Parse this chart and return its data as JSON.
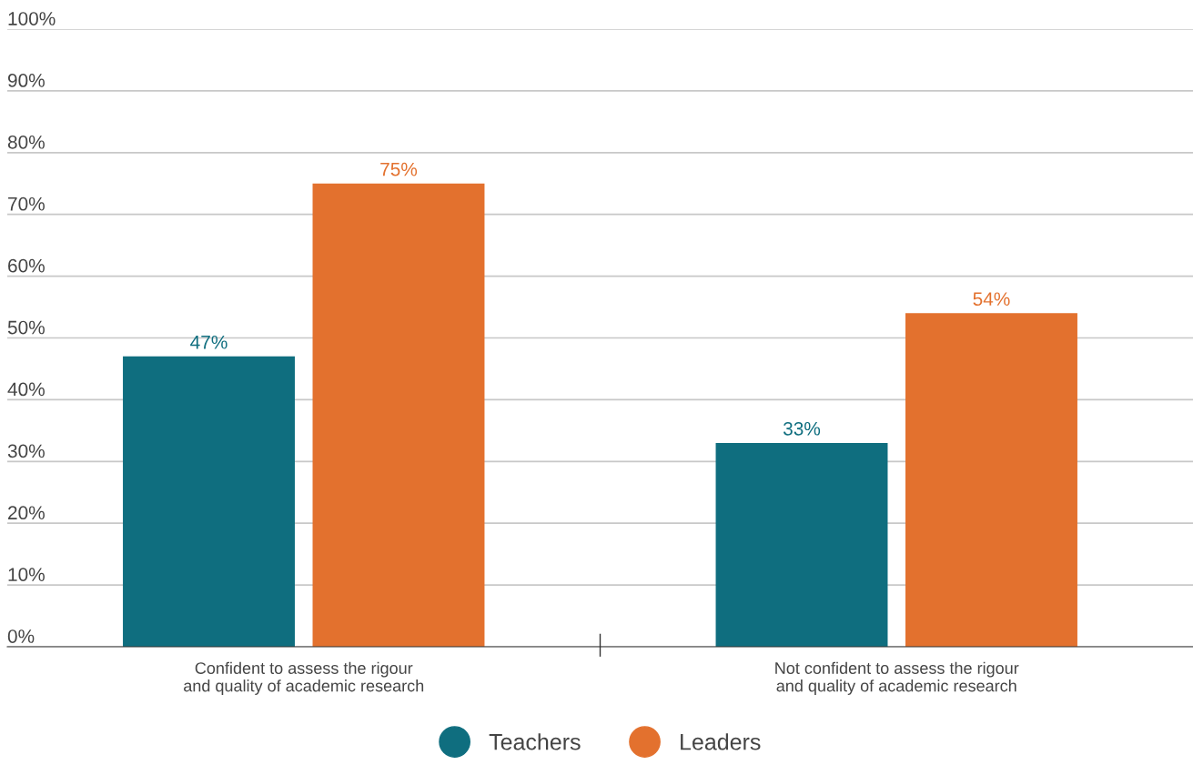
{
  "chart_data": {
    "type": "bar",
    "categories": [
      "Confident to assess the rigour\nand quality of academic research",
      "Not confident to assess the rigour\nand quality of academic research"
    ],
    "series": [
      {
        "name": "Teachers",
        "color": "#0f6e7f",
        "values": [
          47,
          33
        ],
        "value_labels": [
          "47%",
          "33%"
        ]
      },
      {
        "name": "Leaders",
        "color": "#e3712e",
        "values": [
          75,
          54
        ],
        "value_labels": [
          "75%",
          "54%"
        ]
      }
    ],
    "ylim": [
      0,
      100
    ],
    "yticks": [
      {
        "value": 0,
        "label": "0%"
      },
      {
        "value": 10,
        "label": "10%"
      },
      {
        "value": 20,
        "label": "20%"
      },
      {
        "value": 30,
        "label": "30%"
      },
      {
        "value": 40,
        "label": "40%"
      },
      {
        "value": 50,
        "label": "50%"
      },
      {
        "value": 60,
        "label": "60%"
      },
      {
        "value": 70,
        "label": "70%"
      },
      {
        "value": 80,
        "label": "80%"
      },
      {
        "value": 90,
        "label": "90%"
      },
      {
        "value": 100,
        "label": "100%"
      }
    ],
    "grid": "y",
    "legend": "bottom"
  }
}
